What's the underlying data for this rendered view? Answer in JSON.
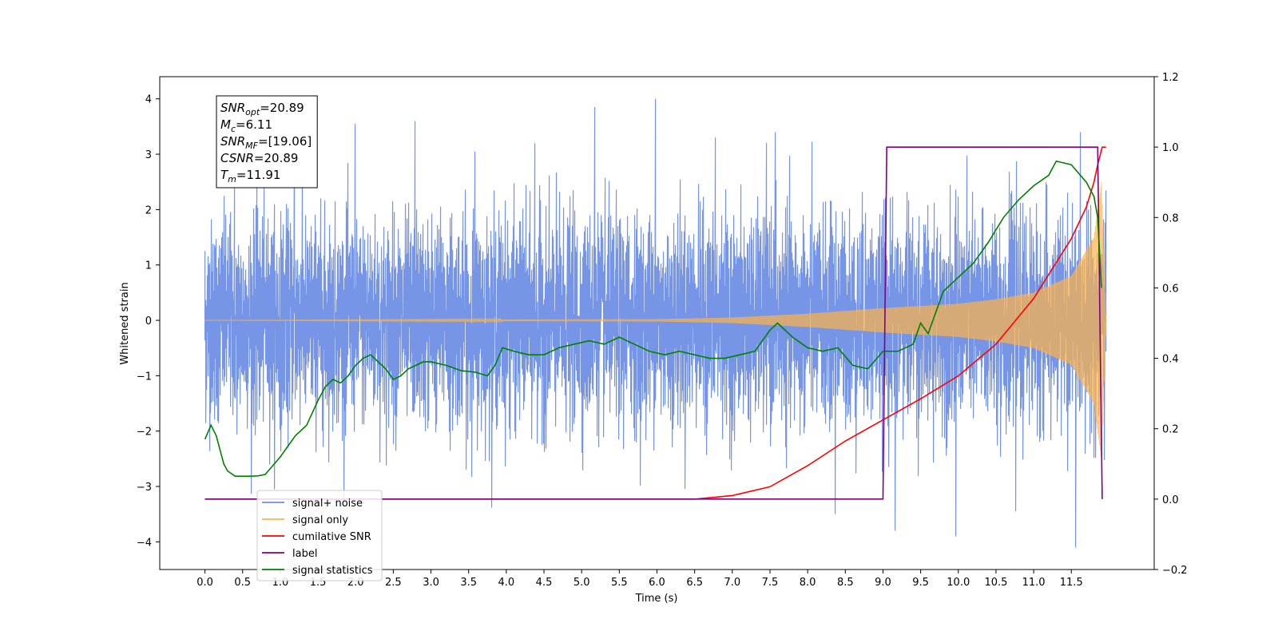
{
  "chart_data": {
    "type": "line",
    "title": "",
    "xlabel": "Time (s)",
    "ylabel": "Whitened strain",
    "ylabel_right": "",
    "xlim": [
      -0.6,
      12.6
    ],
    "ylim": [
      -4.5,
      4.4
    ],
    "ylim_right": [
      -0.2,
      1.2
    ],
    "x_ticks": [
      "0.0",
      "0.5",
      "1.0",
      "1.5",
      "2.0",
      "2.5",
      "3.0",
      "3.5",
      "4.0",
      "4.5",
      "5.0",
      "5.5",
      "6.0",
      "6.5",
      "7.0",
      "7.5",
      "8.0",
      "8.5",
      "9.0",
      "9.5",
      "10.0",
      "10.5",
      "11.0",
      "11.5"
    ],
    "y_ticks": [
      -4,
      -3,
      -2,
      -1,
      0,
      1,
      2,
      3,
      4
    ],
    "y_ticks_right": [
      -0.2,
      0.0,
      0.2,
      0.4,
      0.6,
      0.8,
      1.0,
      1.2
    ],
    "grid": false,
    "legend_position": "lower-left",
    "annotation_lines": [
      {
        "sym": "SNR",
        "sub": "opt",
        "rest": "=20.89"
      },
      {
        "sym": "M",
        "sub": "c",
        "rest": "=6.11"
      },
      {
        "sym": "SNR",
        "sub": "MF",
        "rest": "=[19.06]"
      },
      {
        "sym": "CSNR",
        "sub": "",
        "rest": "=20.89"
      },
      {
        "sym": "T",
        "sub": "m",
        "rest": "=11.91"
      }
    ],
    "series": [
      {
        "name": "signal+ noise",
        "color": "#6f8fe6",
        "axis": "left",
        "kind": "noise",
        "x_range": [
          0.0,
          11.96
        ],
        "amplitude_sigma": 0.9,
        "peak_values": [
          2.42,
          3.87,
          3.55,
          3.6,
          3.05,
          3.2,
          3.85,
          4.0,
          3.3,
          3.4,
          -3.5,
          -3.8,
          -3.9,
          -3.45,
          -4.1
        ]
      },
      {
        "name": "signal only",
        "color": "#ffb347",
        "axis": "left",
        "kind": "chirp",
        "x": [
          0.0,
          6.0,
          7.0,
          8.0,
          9.0,
          10.0,
          10.5,
          11.0,
          11.5,
          11.8,
          11.9,
          11.96
        ],
        "envelope": [
          0.0,
          0.02,
          0.05,
          0.12,
          0.22,
          0.3,
          0.38,
          0.5,
          0.8,
          1.5,
          2.5,
          0.1
        ]
      },
      {
        "name": "cumilative SNR",
        "color": "#ff0000",
        "axis": "right",
        "x": [
          0.0,
          6.5,
          7.0,
          7.5,
          8.0,
          8.5,
          9.0,
          9.5,
          10.0,
          10.5,
          11.0,
          11.5,
          11.7,
          11.8,
          11.85,
          11.91,
          11.96
        ],
        "values": [
          0.0,
          0.0,
          0.01,
          0.035,
          0.095,
          0.165,
          0.225,
          0.285,
          0.35,
          0.44,
          0.57,
          0.74,
          0.83,
          0.9,
          0.95,
          1.0,
          1.0
        ]
      },
      {
        "name": "label",
        "color": "#800080",
        "axis": "right",
        "x": [
          0.0,
          9.0,
          9.05,
          11.85,
          11.91
        ],
        "values": [
          0.0,
          0.0,
          1.0,
          1.0,
          0.0
        ]
      },
      {
        "name": "signal statistics",
        "color": "#008000",
        "axis": "right",
        "x": [
          0.0,
          0.08,
          0.15,
          0.2,
          0.25,
          0.3,
          0.4,
          0.5,
          0.6,
          0.7,
          0.8,
          1.0,
          1.2,
          1.35,
          1.5,
          1.6,
          1.7,
          1.8,
          1.9,
          2.0,
          2.1,
          2.2,
          2.3,
          2.4,
          2.5,
          2.6,
          2.7,
          2.8,
          2.9,
          3.0,
          3.2,
          3.4,
          3.6,
          3.75,
          3.85,
          3.95,
          4.1,
          4.3,
          4.5,
          4.7,
          4.9,
          5.1,
          5.3,
          5.5,
          5.7,
          5.9,
          6.1,
          6.3,
          6.5,
          6.7,
          6.9,
          7.1,
          7.3,
          7.5,
          7.6,
          7.8,
          8.0,
          8.2,
          8.4,
          8.6,
          8.8,
          9.0,
          9.2,
          9.4,
          9.5,
          9.6,
          9.8,
          10.0,
          10.2,
          10.4,
          10.6,
          10.8,
          11.0,
          11.2,
          11.3,
          11.5,
          11.7,
          11.8,
          11.85,
          11.9
        ],
        "values": [
          0.17,
          0.21,
          0.18,
          0.14,
          0.1,
          0.08,
          0.065,
          0.065,
          0.065,
          0.066,
          0.07,
          0.12,
          0.18,
          0.21,
          0.28,
          0.32,
          0.34,
          0.33,
          0.35,
          0.38,
          0.4,
          0.41,
          0.39,
          0.37,
          0.34,
          0.35,
          0.37,
          0.38,
          0.39,
          0.39,
          0.38,
          0.365,
          0.36,
          0.35,
          0.38,
          0.43,
          0.42,
          0.41,
          0.41,
          0.43,
          0.44,
          0.45,
          0.44,
          0.46,
          0.44,
          0.42,
          0.41,
          0.42,
          0.41,
          0.4,
          0.4,
          0.41,
          0.42,
          0.48,
          0.5,
          0.46,
          0.43,
          0.42,
          0.43,
          0.38,
          0.37,
          0.42,
          0.42,
          0.44,
          0.5,
          0.47,
          0.59,
          0.63,
          0.67,
          0.73,
          0.8,
          0.85,
          0.89,
          0.92,
          0.96,
          0.95,
          0.9,
          0.86,
          0.8,
          0.6
        ]
      }
    ]
  }
}
